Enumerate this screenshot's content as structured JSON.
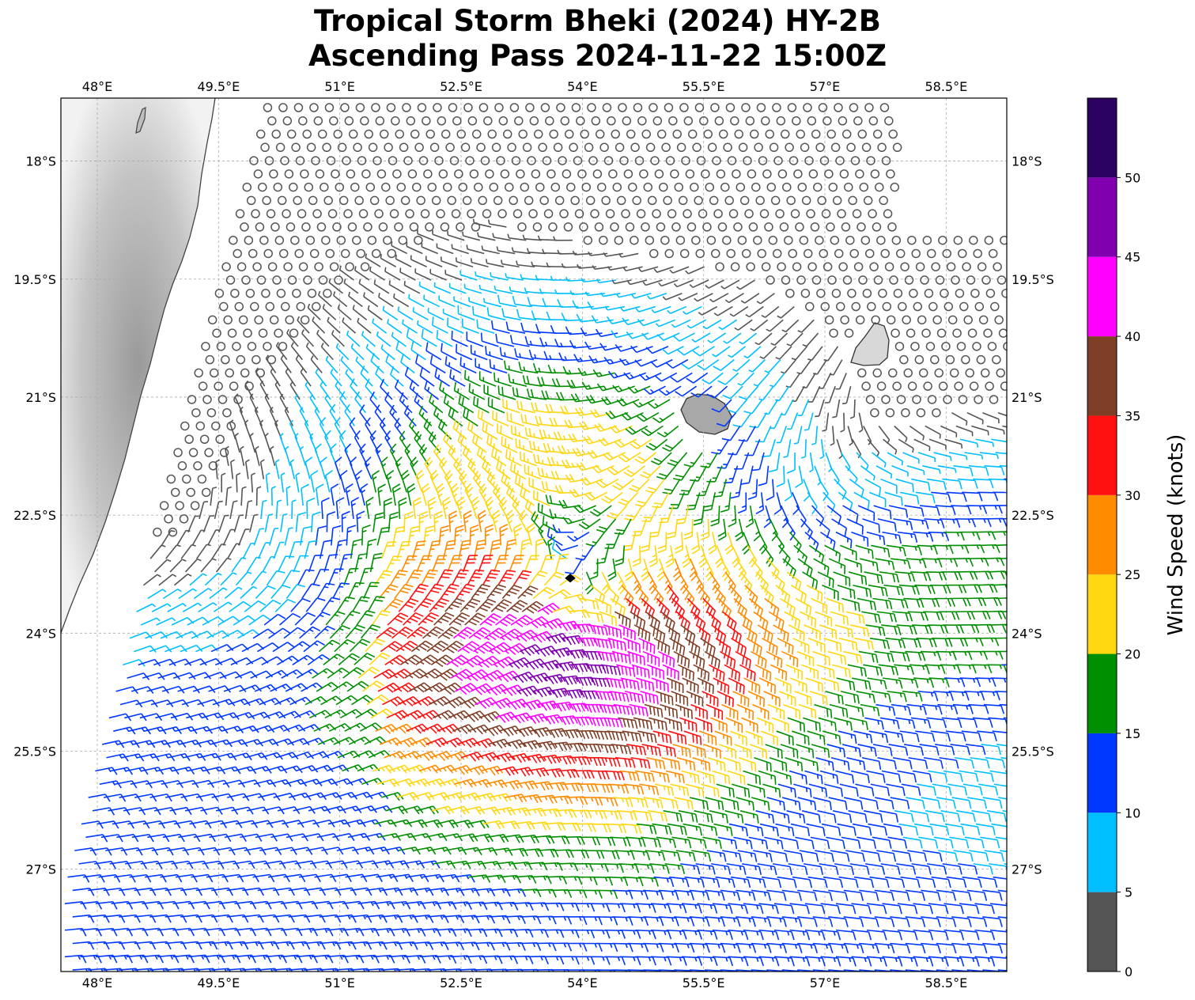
{
  "title": {
    "line1": "Tropical Storm Bheki (2024) HY-2B",
    "line2": "Ascending Pass 2024-11-22 15:00Z"
  },
  "map": {
    "lon_range": [
      47.55,
      59.25
    ],
    "lat_range": [
      -28.3,
      -17.2
    ],
    "lon_ticks": [
      48,
      49.5,
      51,
      52.5,
      54,
      55.5,
      57,
      58.5
    ],
    "lat_ticks": [
      -18,
      -19.5,
      -21,
      -22.5,
      -24,
      -25.5,
      -27
    ],
    "lon_tick_labels": [
      "48°E",
      "49.5°E",
      "51°E",
      "52.5°E",
      "54°E",
      "55.5°E",
      "57°E",
      "58.5°E"
    ],
    "lat_tick_labels": [
      "18°S",
      "19.5°S",
      "21°S",
      "22.5°S",
      "24°S",
      "25.5°S",
      "27°S"
    ],
    "gridlines": true,
    "storm_center": {
      "lon": 53.85,
      "lat": -23.3
    },
    "features": [
      "madagascar-coast",
      "reunion-island",
      "mauritius-island",
      "wind-barbs"
    ]
  },
  "colorbar": {
    "label": "Wind Speed (knots)",
    "ticks": [
      0,
      5,
      10,
      15,
      20,
      25,
      30,
      35,
      40,
      45,
      50
    ],
    "bins": [
      {
        "min": 0,
        "max": 5,
        "color": "#555555"
      },
      {
        "min": 5,
        "max": 10,
        "color": "#00bfff"
      },
      {
        "min": 10,
        "max": 15,
        "color": "#0038ff"
      },
      {
        "min": 15,
        "max": 20,
        "color": "#008f00"
      },
      {
        "min": 20,
        "max": 25,
        "color": "#ffd710"
      },
      {
        "min": 25,
        "max": 30,
        "color": "#ff8c00"
      },
      {
        "min": 30,
        "max": 35,
        "color": "#ff1010"
      },
      {
        "min": 35,
        "max": 40,
        "color": "#7f3f27"
      },
      {
        "min": 40,
        "max": 45,
        "color": "#ff00ff"
      },
      {
        "min": 45,
        "max": 50,
        "color": "#8000b0"
      },
      {
        "min": 50,
        "max": 55,
        "color": "#2a0060"
      }
    ]
  }
}
